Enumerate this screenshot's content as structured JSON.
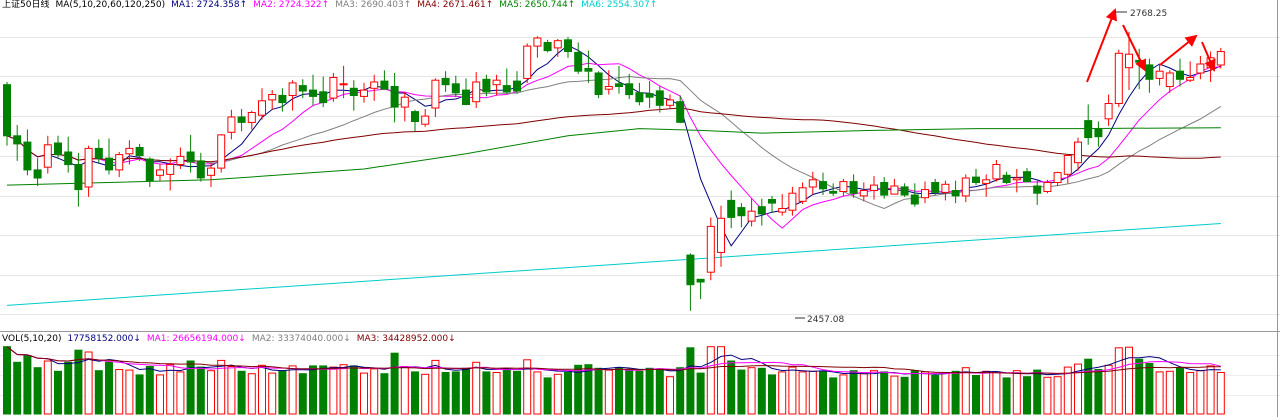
{
  "price_header": {
    "title": "上证50日线",
    "ma_params": "MA(5,10,20,60,120,250)",
    "items": [
      {
        "label": "MA1: 2724.358↑",
        "color": "#000080"
      },
      {
        "label": "MA2: 2724.322↑",
        "color": "#ff00ff"
      },
      {
        "label": "MA3: 2690.403↑",
        "color": "#808080"
      },
      {
        "label": "MA4: 2671.461↑",
        "color": "#800000"
      },
      {
        "label": "MA5: 2650.744↑",
        "color": "#008000"
      },
      {
        "label": "MA6: 2554.307↑",
        "color": "#00cccc"
      }
    ]
  },
  "volume_header": {
    "params": "VOL(5,10,20)",
    "items": [
      {
        "label": "17758152.000↓",
        "color": "#000080"
      },
      {
        "label": "MA1: 26656194.000↓",
        "color": "#ff00ff"
      },
      {
        "label": "MA2: 33374040.000↓",
        "color": "#808080"
      },
      {
        "label": "MA3: 34428952.000↓",
        "color": "#800000"
      }
    ]
  },
  "annotations": {
    "high": "2768.25",
    "low": "2457.08"
  },
  "colors": {
    "up": "#ff0000",
    "down": "#008000",
    "arrow": "#ff0000"
  },
  "chart_data": {
    "type": "candlestick",
    "title": "上证50日线",
    "ylim": [
      2440,
      2790
    ],
    "candles": [
      [
        2709,
        2712,
        2641,
        2652
      ],
      [
        2652,
        2664,
        2624,
        2643
      ],
      [
        2645,
        2659,
        2608,
        2614
      ],
      [
        2614,
        2627,
        2596,
        2605
      ],
      [
        2617,
        2652,
        2610,
        2642
      ],
      [
        2644,
        2652,
        2627,
        2631
      ],
      [
        2634,
        2651,
        2611,
        2620
      ],
      [
        2620,
        2633,
        2573,
        2592
      ],
      [
        2595,
        2641,
        2584,
        2638
      ],
      [
        2638,
        2648,
        2622,
        2627
      ],
      [
        2627,
        2649,
        2609,
        2614
      ],
      [
        2614,
        2634,
        2606,
        2631
      ],
      [
        2632,
        2647,
        2620,
        2638
      ],
      [
        2639,
        2643,
        2624,
        2630
      ],
      [
        2626,
        2628,
        2595,
        2602
      ],
      [
        2608,
        2621,
        2602,
        2614
      ],
      [
        2609,
        2627,
        2591,
        2620
      ],
      [
        2620,
        2639,
        2615,
        2629
      ],
      [
        2634,
        2653,
        2611,
        2623
      ],
      [
        2624,
        2633,
        2601,
        2605
      ],
      [
        2608,
        2621,
        2595,
        2616
      ],
      [
        2616,
        2654,
        2611,
        2653
      ],
      [
        2656,
        2681,
        2648,
        2673
      ],
      [
        2673,
        2682,
        2657,
        2667
      ],
      [
        2667,
        2680,
        2659,
        2678
      ],
      [
        2675,
        2705,
        2670,
        2691
      ],
      [
        2692,
        2703,
        2681,
        2698
      ],
      [
        2697,
        2705,
        2679,
        2689
      ],
      [
        2697,
        2714,
        2680,
        2711
      ],
      [
        2708,
        2715,
        2694,
        2702
      ],
      [
        2703,
        2720,
        2686,
        2696
      ],
      [
        2701,
        2718,
        2684,
        2689
      ],
      [
        2694,
        2722,
        2690,
        2717
      ],
      [
        2710,
        2730,
        2694,
        2710
      ],
      [
        2705,
        2714,
        2680,
        2697
      ],
      [
        2696,
        2711,
        2689,
        2703
      ],
      [
        2705,
        2720,
        2691,
        2712
      ],
      [
        2713,
        2725,
        2704,
        2704
      ],
      [
        2707,
        2722,
        2667,
        2684
      ],
      [
        2684,
        2701,
        2668,
        2695
      ],
      [
        2679,
        2681,
        2657,
        2668
      ],
      [
        2665,
        2682,
        2662,
        2674
      ],
      [
        2683,
        2716,
        2673,
        2714
      ],
      [
        2716,
        2724,
        2701,
        2709
      ],
      [
        2710,
        2719,
        2695,
        2700
      ],
      [
        2703,
        2716,
        2686,
        2687
      ],
      [
        2690,
        2723,
        2683,
        2712
      ],
      [
        2715,
        2720,
        2696,
        2701
      ],
      [
        2709,
        2720,
        2697,
        2714
      ],
      [
        2708,
        2727,
        2699,
        2701
      ],
      [
        2713,
        2724,
        2699,
        2702
      ],
      [
        2716,
        2755,
        2711,
        2752
      ],
      [
        2752,
        2763,
        2739,
        2761
      ],
      [
        2756,
        2759,
        2745,
        2747
      ],
      [
        2750,
        2760,
        2740,
        2758
      ],
      [
        2759,
        2762,
        2739,
        2746
      ],
      [
        2745,
        2756,
        2721,
        2724
      ],
      [
        2727,
        2747,
        2711,
        2724
      ],
      [
        2722,
        2724,
        2694,
        2698
      ],
      [
        2704,
        2725,
        2698,
        2707
      ],
      [
        2710,
        2730,
        2699,
        2707
      ],
      [
        2710,
        2721,
        2693,
        2698
      ],
      [
        2700,
        2711,
        2686,
        2690
      ],
      [
        2699,
        2713,
        2683,
        2695
      ],
      [
        2702,
        2707,
        2678,
        2686
      ],
      [
        2686,
        2698,
        2682,
        2692
      ],
      [
        2690,
        2697,
        2666,
        2667
      ],
      [
        2519,
        2521,
        2457,
        2486
      ],
      [
        2492,
        2492,
        2470,
        2489
      ],
      [
        2500,
        2561,
        2491,
        2551
      ],
      [
        2522,
        2574,
        2506,
        2560
      ],
      [
        2580,
        2591,
        2549,
        2561
      ],
      [
        2572,
        2577,
        2550,
        2563
      ],
      [
        2557,
        2582,
        2551,
        2568
      ],
      [
        2573,
        2582,
        2552,
        2565
      ],
      [
        2581,
        2585,
        2566,
        2577
      ],
      [
        2567,
        2587,
        2563,
        2571
      ],
      [
        2569,
        2595,
        2563,
        2588
      ],
      [
        2579,
        2600,
        2576,
        2594
      ],
      [
        2595,
        2612,
        2587,
        2603
      ],
      [
        2601,
        2611,
        2586,
        2593
      ],
      [
        2590,
        2599,
        2585,
        2588
      ],
      [
        2590,
        2604,
        2585,
        2601
      ],
      [
        2601,
        2609,
        2583,
        2588
      ],
      [
        2585,
        2600,
        2579,
        2591
      ],
      [
        2591,
        2607,
        2581,
        2597
      ],
      [
        2600,
        2606,
        2582,
        2586
      ],
      [
        2587,
        2604,
        2587,
        2596
      ],
      [
        2595,
        2599,
        2584,
        2586
      ],
      [
        2586,
        2599,
        2573,
        2576
      ],
      [
        2583,
        2601,
        2577,
        2592
      ],
      [
        2600,
        2604,
        2586,
        2589
      ],
      [
        2589,
        2602,
        2580,
        2598
      ],
      [
        2591,
        2602,
        2577,
        2585
      ],
      [
        2585,
        2609,
        2578,
        2605
      ],
      [
        2606,
        2615,
        2597,
        2600
      ],
      [
        2599,
        2609,
        2584,
        2603
      ],
      [
        2604,
        2625,
        2601,
        2620
      ],
      [
        2608,
        2612,
        2598,
        2600
      ],
      [
        2603,
        2615,
        2589,
        2605
      ],
      [
        2612,
        2616,
        2600,
        2601
      ],
      [
        2596,
        2602,
        2575,
        2588
      ],
      [
        2590,
        2603,
        2588,
        2600
      ],
      [
        2600,
        2612,
        2596,
        2611
      ],
      [
        2609,
        2631,
        2599,
        2630
      ],
      [
        2622,
        2650,
        2613,
        2645
      ],
      [
        2669,
        2687,
        2642,
        2650
      ],
      [
        2660,
        2668,
        2640,
        2651
      ],
      [
        2671,
        2698,
        2663,
        2688
      ],
      [
        2688,
        2748,
        2684,
        2744
      ],
      [
        2728,
        2768,
        2703,
        2743
      ],
      [
        2736,
        2749,
        2704,
        2734
      ],
      [
        2731,
        2738,
        2700,
        2715
      ],
      [
        2716,
        2732,
        2708,
        2724
      ],
      [
        2707,
        2725,
        2700,
        2722
      ],
      [
        2724,
        2738,
        2707,
        2715
      ],
      [
        2714,
        2735,
        2712,
        2717
      ],
      [
        2722,
        2741,
        2715,
        2732
      ],
      [
        2728,
        2746,
        2712,
        2739
      ],
      [
        2731,
        2750,
        2727,
        2746
      ]
    ],
    "volume_ylim": [
      0,
      40000000
    ]
  }
}
